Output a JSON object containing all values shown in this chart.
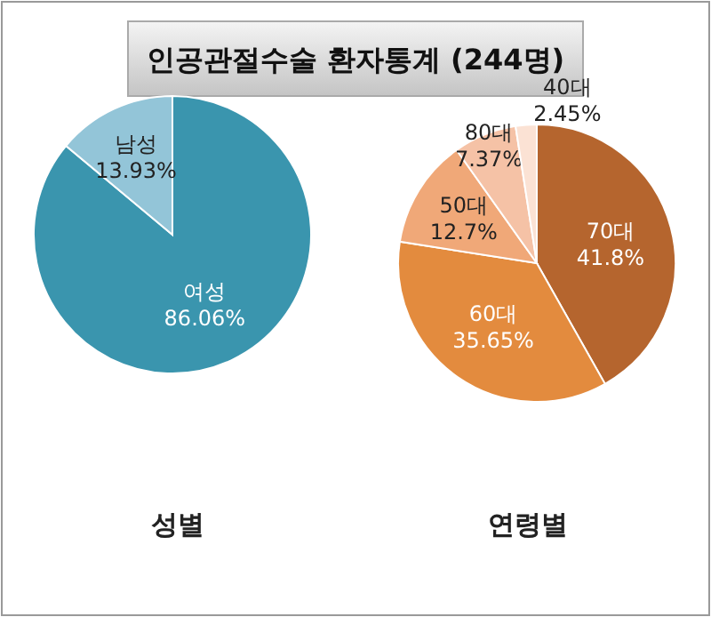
{
  "chart_data": [
    {
      "type": "pie",
      "title": "인공관절수술 환자통계 (244명)",
      "xlabel": "성별",
      "categories": [
        "여성",
        "남성"
      ],
      "values": [
        86.06,
        13.93
      ],
      "colors": [
        "#3a95ae",
        "#93c5d8"
      ],
      "value_labels": [
        "86.06%",
        "13.93%"
      ]
    },
    {
      "type": "pie",
      "xlabel": "연령별",
      "categories": [
        "70대",
        "60대",
        "50대",
        "80대",
        "40대"
      ],
      "values": [
        41.8,
        35.65,
        12.7,
        7.37,
        2.45
      ],
      "colors": [
        "#b5652e",
        "#e38b3e",
        "#f0a878",
        "#f5c2a6",
        "#fbe2d4"
      ],
      "value_labels": [
        "41.8%",
        "35.65%",
        "12.7%",
        "7.37%",
        "2.45%"
      ]
    }
  ]
}
